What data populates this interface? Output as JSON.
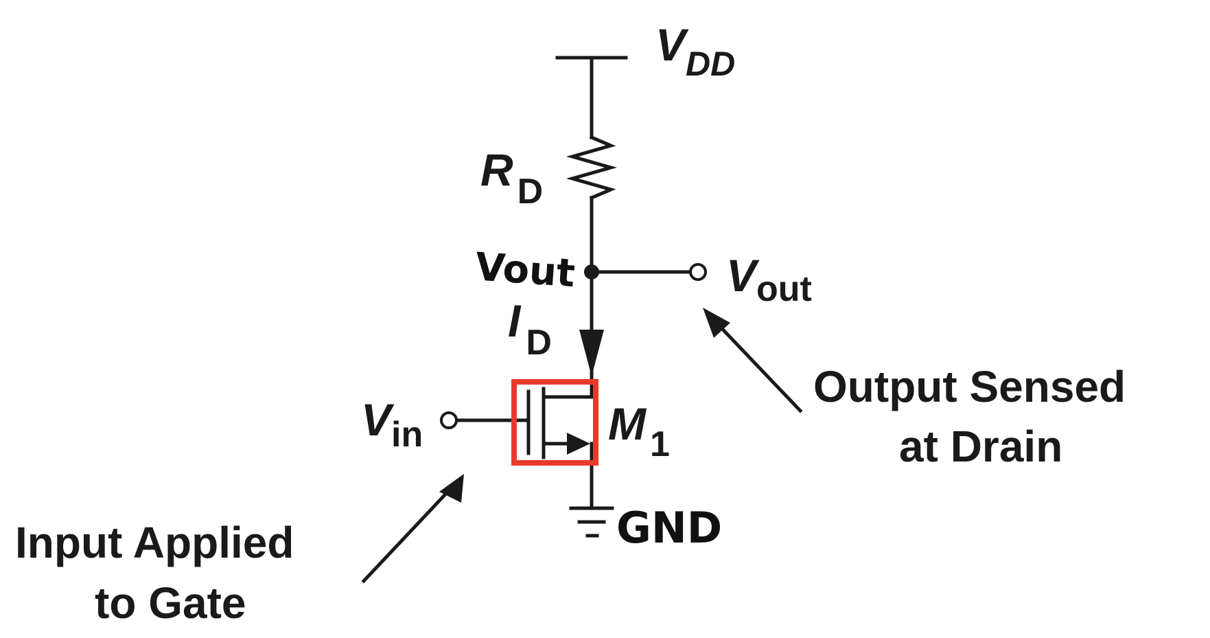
{
  "supply": {
    "symbol": "V",
    "subscript": "DD"
  },
  "resistor": {
    "symbol": "R",
    "subscript": "D"
  },
  "node_handwritten": "Vout",
  "current": {
    "symbol": "I",
    "subscript": "D"
  },
  "output_terminal": {
    "symbol": "V",
    "subscript": "out"
  },
  "transistor": {
    "symbol": "M",
    "subscript": "1"
  },
  "input_terminal": {
    "symbol": "V",
    "subscript": "in"
  },
  "ground_handwritten": "GND",
  "annotations": {
    "output_line1": "Output Sensed",
    "output_line2": "at Drain",
    "input_line1": "Input Applied",
    "input_line2": "to Gate"
  },
  "colors": {
    "highlight_box": "#e8392b",
    "ink": "#1a1a1a"
  }
}
